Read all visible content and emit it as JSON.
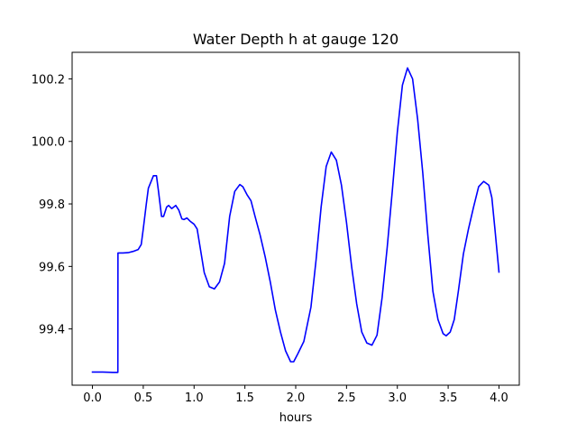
{
  "chart_data": {
    "type": "line",
    "title": "Water Depth h at gauge 120",
    "xlabel": "hours",
    "ylabel": "",
    "xlim": [
      -0.2,
      4.2
    ],
    "ylim": [
      99.22,
      100.285
    ],
    "grid": false,
    "x_ticks": [
      {
        "value": 0.0,
        "label": "0.0"
      },
      {
        "value": 0.5,
        "label": "0.5"
      },
      {
        "value": 1.0,
        "label": "1.0"
      },
      {
        "value": 1.5,
        "label": "1.5"
      },
      {
        "value": 2.0,
        "label": "2.0"
      },
      {
        "value": 2.5,
        "label": "2.5"
      },
      {
        "value": 3.0,
        "label": "3.0"
      },
      {
        "value": 3.5,
        "label": "3.5"
      },
      {
        "value": 4.0,
        "label": "4.0"
      }
    ],
    "y_ticks": [
      {
        "value": 99.4,
        "label": "99.4"
      },
      {
        "value": 99.6,
        "label": "99.6"
      },
      {
        "value": 99.8,
        "label": "99.8"
      },
      {
        "value": 100.0,
        "label": "100.0"
      },
      {
        "value": 100.2,
        "label": "100.2"
      }
    ],
    "series": [
      {
        "color": "#0000ff",
        "points": [
          [
            0.0,
            99.262
          ],
          [
            0.1,
            99.262
          ],
          [
            0.2,
            99.261
          ],
          [
            0.25,
            99.261
          ],
          [
            0.251,
            99.643
          ],
          [
            0.3,
            99.643
          ],
          [
            0.35,
            99.644
          ],
          [
            0.4,
            99.648
          ],
          [
            0.45,
            99.654
          ],
          [
            0.48,
            99.67
          ],
          [
            0.5,
            99.72
          ],
          [
            0.53,
            99.8
          ],
          [
            0.55,
            99.85
          ],
          [
            0.6,
            99.89
          ],
          [
            0.63,
            99.89
          ],
          [
            0.65,
            99.84
          ],
          [
            0.68,
            99.76
          ],
          [
            0.7,
            99.76
          ],
          [
            0.73,
            99.79
          ],
          [
            0.75,
            99.795
          ],
          [
            0.78,
            99.785
          ],
          [
            0.82,
            99.795
          ],
          [
            0.85,
            99.78
          ],
          [
            0.88,
            99.752
          ],
          [
            0.9,
            99.75
          ],
          [
            0.93,
            99.755
          ],
          [
            0.96,
            99.745
          ],
          [
            1.0,
            99.735
          ],
          [
            1.03,
            99.72
          ],
          [
            1.06,
            99.66
          ],
          [
            1.1,
            99.58
          ],
          [
            1.15,
            99.535
          ],
          [
            1.2,
            99.528
          ],
          [
            1.25,
            99.55
          ],
          [
            1.3,
            99.61
          ],
          [
            1.35,
            99.76
          ],
          [
            1.4,
            99.84
          ],
          [
            1.45,
            99.862
          ],
          [
            1.48,
            99.855
          ],
          [
            1.52,
            99.83
          ],
          [
            1.56,
            99.81
          ],
          [
            1.6,
            99.76
          ],
          [
            1.65,
            99.7
          ],
          [
            1.7,
            99.63
          ],
          [
            1.75,
            99.55
          ],
          [
            1.8,
            99.46
          ],
          [
            1.85,
            99.39
          ],
          [
            1.9,
            99.33
          ],
          [
            1.95,
            99.295
          ],
          [
            1.98,
            99.295
          ],
          [
            2.02,
            99.32
          ],
          [
            2.08,
            99.36
          ],
          [
            2.15,
            99.47
          ],
          [
            2.2,
            99.62
          ],
          [
            2.25,
            99.79
          ],
          [
            2.3,
            99.92
          ],
          [
            2.35,
            99.966
          ],
          [
            2.4,
            99.94
          ],
          [
            2.45,
            99.86
          ],
          [
            2.5,
            99.74
          ],
          [
            2.55,
            99.6
          ],
          [
            2.6,
            99.48
          ],
          [
            2.65,
            99.39
          ],
          [
            2.7,
            99.355
          ],
          [
            2.75,
            99.348
          ],
          [
            2.8,
            99.38
          ],
          [
            2.85,
            99.5
          ],
          [
            2.9,
            99.66
          ],
          [
            2.95,
            99.84
          ],
          [
            3.0,
            100.03
          ],
          [
            3.05,
            100.18
          ],
          [
            3.1,
            100.235
          ],
          [
            3.15,
            100.2
          ],
          [
            3.2,
            100.07
          ],
          [
            3.25,
            99.9
          ],
          [
            3.3,
            99.7
          ],
          [
            3.35,
            99.52
          ],
          [
            3.4,
            99.43
          ],
          [
            3.45,
            99.385
          ],
          [
            3.48,
            99.378
          ],
          [
            3.52,
            99.39
          ],
          [
            3.56,
            99.43
          ],
          [
            3.6,
            99.52
          ],
          [
            3.65,
            99.64
          ],
          [
            3.7,
            99.72
          ],
          [
            3.75,
            99.79
          ],
          [
            3.8,
            99.855
          ],
          [
            3.85,
            99.872
          ],
          [
            3.9,
            99.86
          ],
          [
            3.93,
            99.82
          ],
          [
            3.96,
            99.72
          ],
          [
            4.0,
            99.582
          ]
        ]
      }
    ]
  }
}
